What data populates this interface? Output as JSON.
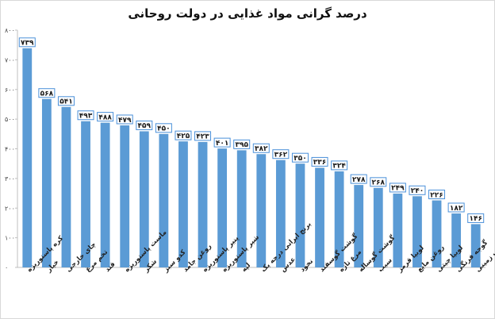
{
  "chart_data": {
    "type": "bar",
    "title": "درصد گرانی مواد غذایی در دولت روحانی",
    "xlabel": "",
    "ylabel": "",
    "ylim": [
      0,
      800
    ],
    "yticks": [
      0,
      100,
      200,
      300,
      400,
      500,
      600,
      700,
      800
    ],
    "ytick_labels": [
      "۰",
      "۱۰۰",
      "۲۰۰",
      "۳۰۰",
      "۴۰۰",
      "۵۰۰",
      "۶۰۰",
      "۷۰۰",
      "۸۰۰"
    ],
    "grid": false,
    "legend": "none",
    "bar_color": "#5b9bd5",
    "categories": [
      "کره پاستوریزه",
      "خیار",
      "چای خارجی",
      "تخم مرغ",
      "قند",
      "ماست پاستوریزه",
      "شکر",
      "کدو سبز",
      "روغن جامد",
      "پنیر پاستوریزه",
      "شیر پاستوریزه",
      "لپه",
      "برنج ایرانی درجه یک",
      "عدس",
      "نخود",
      "گوشت گوسفند",
      "مرغ تازه",
      "گوشت گوساله",
      "سیب",
      "لوبیا قرمز",
      "روغن مایع",
      "لوبیا چیتی",
      "گوجه فرنگی",
      "سیب زمینی"
    ],
    "values": [
      739,
      568,
      541,
      493,
      488,
      479,
      459,
      450,
      425,
      423,
      401,
      395,
      382,
      362,
      350,
      336,
      324,
      278,
      268,
      249,
      240,
      226,
      182,
      146
    ],
    "value_labels": [
      "۷۳۹",
      "۵۶۸",
      "۵۴۱",
      "۴۹۳",
      "۴۸۸",
      "۴۷۹",
      "۴۵۹",
      "۴۵۰",
      "۴۲۵",
      "۴۲۳",
      "۴۰۱",
      "۳۹۵",
      "۳۸۲",
      "۳۶۲",
      "۳۵۰",
      "۳۳۶",
      "۳۲۴",
      "۲۷۸",
      "۲۶۸",
      "۲۴۹",
      "۲۴۰",
      "۲۲۶",
      "۱۸۲",
      "۱۴۶"
    ]
  }
}
